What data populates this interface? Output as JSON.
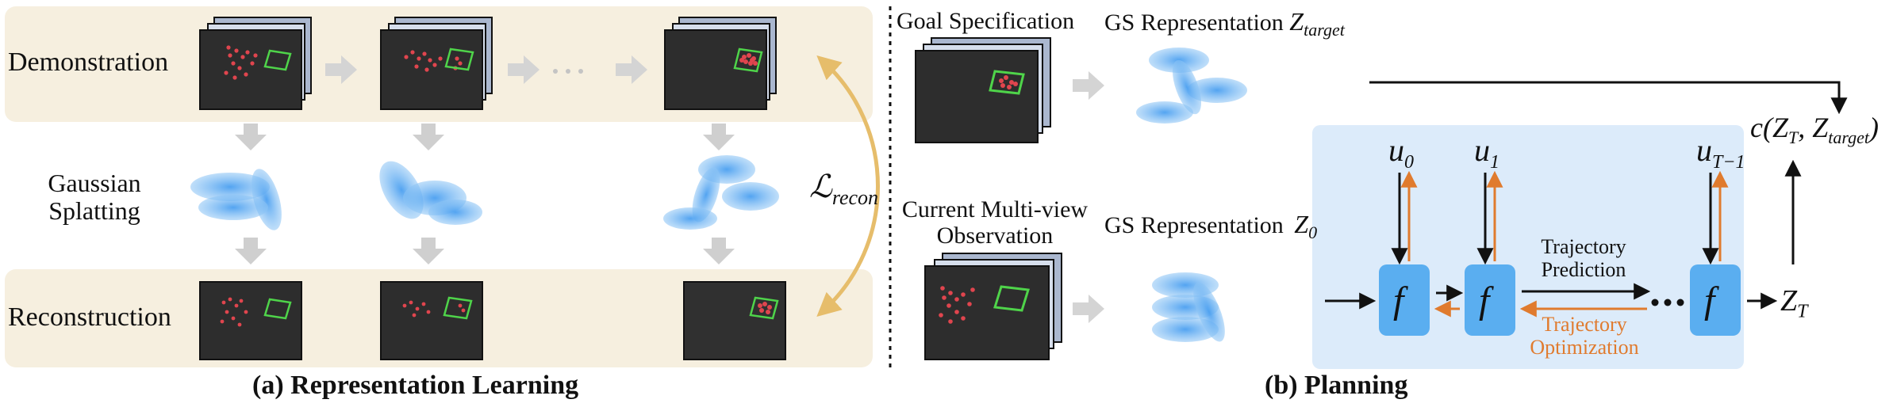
{
  "left": {
    "row_demo": "Demonstration",
    "row_gs_line1": "Gaussian",
    "row_gs_line2": "Splatting",
    "row_recon": "Reconstruction",
    "loss_script": "ℒ",
    "loss_sub": "recon",
    "caption": "(a) Representation Learning"
  },
  "right": {
    "goal_title": "Goal Specification",
    "gs_target": "GS Representation",
    "z_target": "Z",
    "z_target_sub": "target",
    "current_line1": "Current Multi-view",
    "current_line2": "Observation",
    "gs_z0": "GS Representation",
    "z0": "Z",
    "z0_sub": "0",
    "u0": "u",
    "u0_sub": "0",
    "u1": "u",
    "u1_sub": "1",
    "uT": "u",
    "uT_sub": "T−1",
    "f_label": "f",
    "traj_pred_1": "Trajectory",
    "traj_pred_2": "Prediction",
    "traj_opt_1": "Trajectory",
    "traj_opt_2": "Optimization",
    "zT": "Z",
    "zT_sub": "T",
    "cost": "c(Z",
    "cost_t": "T",
    "cost_mid": ", Z",
    "cost_target": "target",
    "cost_end": ")",
    "caption": "(b) Planning"
  },
  "colors": {
    "cream_panel": "#f6efdf",
    "blue_panel": "#dcebfa",
    "f_block": "#5aaef0",
    "orange": "#e07b2e",
    "gaussian": "#5aa8ee",
    "gray_arrow": "#cccccc",
    "loss_arc": "#e6bd6b"
  }
}
